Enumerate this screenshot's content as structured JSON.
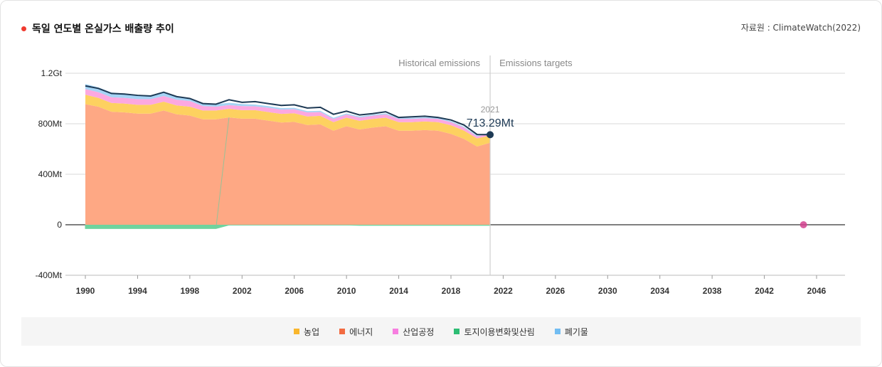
{
  "header": {
    "title": "독일 연도별 온실가스 배출량 추이",
    "source": "자료원 : ClimateWatch(2022)"
  },
  "colors": {
    "accent_dot": "#f03a2f",
    "agriculture": "#fdd160",
    "energy": "#fea884",
    "industry": "#fca8e0",
    "lulucf": "#6fd39e",
    "waste": "#a6d4f5",
    "total_line": "#1e3a55",
    "target_point": "#d4428f"
  },
  "chart_data": {
    "type": "area",
    "title": "독일 연도별 온실가스 배출량 추이",
    "x_range": [
      1990,
      2048
    ],
    "y_range": [
      -400,
      1200
    ],
    "y_unit": "Mt",
    "y_ticks": [
      {
        "value": 1200,
        "label": "1.2Gt"
      },
      {
        "value": 800,
        "label": "800Mt"
      },
      {
        "value": 400,
        "label": "400Mt"
      },
      {
        "value": 0,
        "label": "0"
      },
      {
        "value": -400,
        "label": "-400Mt"
      }
    ],
    "x_ticks": [
      1990,
      1994,
      1998,
      2002,
      2006,
      2010,
      2014,
      2018,
      2022,
      2026,
      2030,
      2034,
      2038,
      2042,
      2046
    ],
    "region_labels": {
      "historical": "Historical emissions",
      "targets": "Emissions targets"
    },
    "divider_year": 2021,
    "years": [
      1990,
      1991,
      1992,
      1993,
      1994,
      1995,
      1996,
      1997,
      1998,
      1999,
      2000,
      2001,
      2002,
      2003,
      2004,
      2005,
      2006,
      2007,
      2008,
      2009,
      2010,
      2011,
      2012,
      2013,
      2014,
      2015,
      2016,
      2017,
      2018,
      2019,
      2020,
      2021
    ],
    "series": [
      {
        "name": "에너지",
        "key": "energy",
        "values": [
          955,
          935,
          895,
          890,
          880,
          880,
          905,
          875,
          865,
          835,
          835,
          850,
          840,
          840,
          825,
          810,
          815,
          790,
          795,
          745,
          780,
          755,
          770,
          780,
          745,
          745,
          750,
          745,
          720,
          680,
          620,
          650
        ]
      },
      {
        "name": "농업",
        "key": "agriculture",
        "values": [
          75,
          70,
          70,
          70,
          70,
          70,
          70,
          70,
          70,
          70,
          70,
          68,
          68,
          68,
          68,
          68,
          68,
          68,
          68,
          68,
          68,
          68,
          68,
          68,
          68,
          68,
          68,
          68,
          68,
          66,
          64,
          58
        ]
      },
      {
        "name": "산업공정",
        "key": "industry",
        "values": [
          45,
          45,
          45,
          45,
          45,
          45,
          45,
          45,
          45,
          35,
          30,
          30,
          32,
          30,
          34,
          34,
          32,
          32,
          30,
          25,
          25,
          26,
          26,
          26,
          26,
          26,
          26,
          26,
          25,
          23,
          15,
          15
        ]
      },
      {
        "name": "폐기물",
        "key": "waste",
        "values": [
          40,
          38,
          37,
          35,
          33,
          31,
          29,
          27,
          25,
          22,
          20,
          18,
          16,
          14,
          13,
          12,
          11,
          10,
          10,
          9,
          9,
          9,
          8,
          8,
          8,
          8,
          8,
          8,
          8,
          7,
          7,
          7
        ]
      },
      {
        "name": "토지이용변화및산림",
        "key": "lulucf",
        "values": [
          -30,
          -30,
          -30,
          -30,
          -30,
          -30,
          -30,
          -30,
          -30,
          -30,
          -30,
          -2,
          -2,
          -2,
          -2,
          -2,
          -2,
          -2,
          -2,
          -2,
          -2,
          -5,
          -5,
          -5,
          -5,
          -5,
          -5,
          -5,
          -5,
          -5,
          -5,
          -5
        ]
      }
    ],
    "total_line": [
      1100,
      1080,
      1040,
      1035,
      1025,
      1020,
      1050,
      1015,
      1000,
      960,
      955,
      990,
      970,
      975,
      960,
      945,
      950,
      925,
      930,
      875,
      900,
      870,
      880,
      895,
      850,
      855,
      860,
      850,
      830,
      790,
      715,
      713.29
    ],
    "highlight": {
      "year": "2021",
      "value": 713.29,
      "label": "713.29Mt"
    },
    "target_point": {
      "year": 2045,
      "value": 0
    },
    "legend": [
      {
        "name": "농업",
        "color": "#f9b62c"
      },
      {
        "name": "에너지",
        "color": "#f26b41"
      },
      {
        "name": "산업공정",
        "color": "#f77ee0"
      },
      {
        "name": "토지이용변화및산림",
        "color": "#2dbd74"
      },
      {
        "name": "폐기물",
        "color": "#72bdf2"
      }
    ]
  }
}
